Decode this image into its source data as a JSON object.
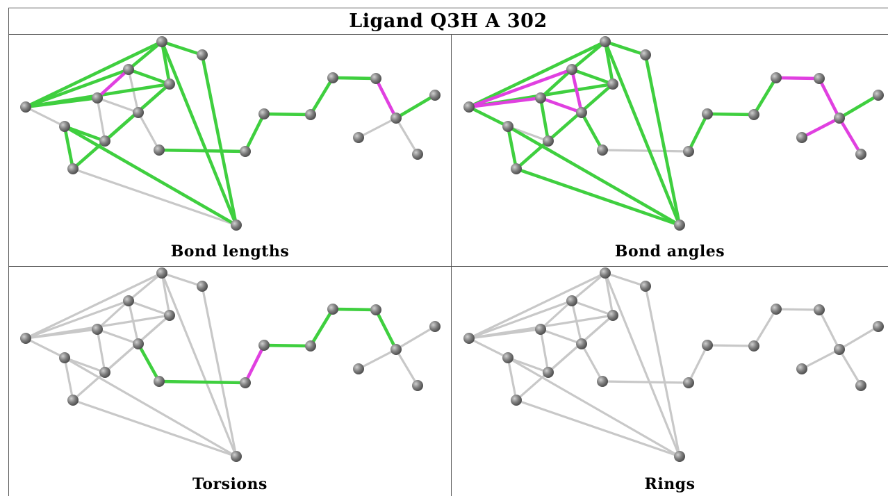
{
  "title": "Ligand Q3H A 302",
  "panels": [
    {
      "label": "Bond lengths"
    },
    {
      "label": "Bond angles"
    },
    {
      "label": "Torsions"
    },
    {
      "label": "Rings"
    }
  ],
  "colors": {
    "bond_default": "#c8c8c8",
    "bond_ok": "#3fcf3f",
    "bond_outlier": "#e040e0",
    "atom": "#808080"
  }
}
